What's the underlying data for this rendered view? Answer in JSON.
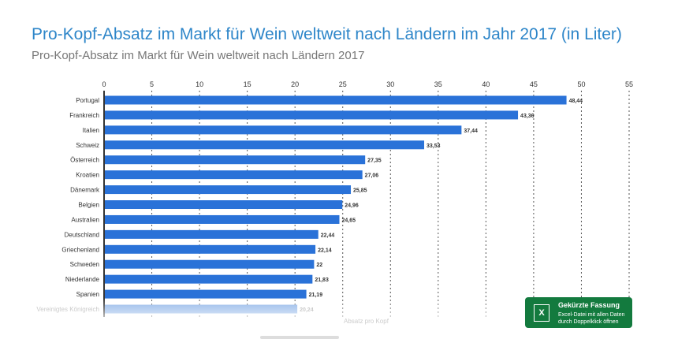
{
  "title": "Pro-Kopf-Absatz im Markt für Wein weltweit nach Ländern im Jahr 2017 (in Liter)",
  "subtitle": "Pro-Kopf-Absatz im Markt für Wein weltweit nach Ländern 2017",
  "chart_data": {
    "type": "bar",
    "orientation": "horizontal",
    "categories": [
      "Portugal",
      "Frankreich",
      "Italien",
      "Schweiz",
      "Österreich",
      "Kroatien",
      "Dänemark",
      "Belgien",
      "Australien",
      "Deutschland",
      "Griechenland",
      "Schweden",
      "Niederlande",
      "Spanien",
      "Vereinigtes Königreich"
    ],
    "values": [
      48.44,
      43.36,
      37.44,
      33.53,
      27.35,
      27.06,
      25.85,
      24.96,
      24.65,
      22.44,
      22.14,
      22,
      21.83,
      21.19,
      20.24
    ],
    "value_labels": [
      "48,44",
      "43,36",
      "37,44",
      "33,53",
      "27,35",
      "27,06",
      "25,85",
      "24,96",
      "24,65",
      "22,44",
      "22,14",
      "22",
      "21,83",
      "21,19",
      "20,24"
    ],
    "xlim": [
      0,
      55
    ],
    "ticks": [
      "0",
      "5",
      "10",
      "15",
      "20",
      "25",
      "30",
      "35",
      "40",
      "45",
      "50",
      "55"
    ],
    "xlabel": "Absatz pro Kopf",
    "grid": true,
    "bar_color": "#2a72d8"
  },
  "excel": {
    "title": "Gekürzte Fassung",
    "line1": "Excel-Datei mit allen Daten",
    "line2": "durch Doppelklick öffnen",
    "icon": "excel-icon",
    "color": "#137a3e"
  }
}
